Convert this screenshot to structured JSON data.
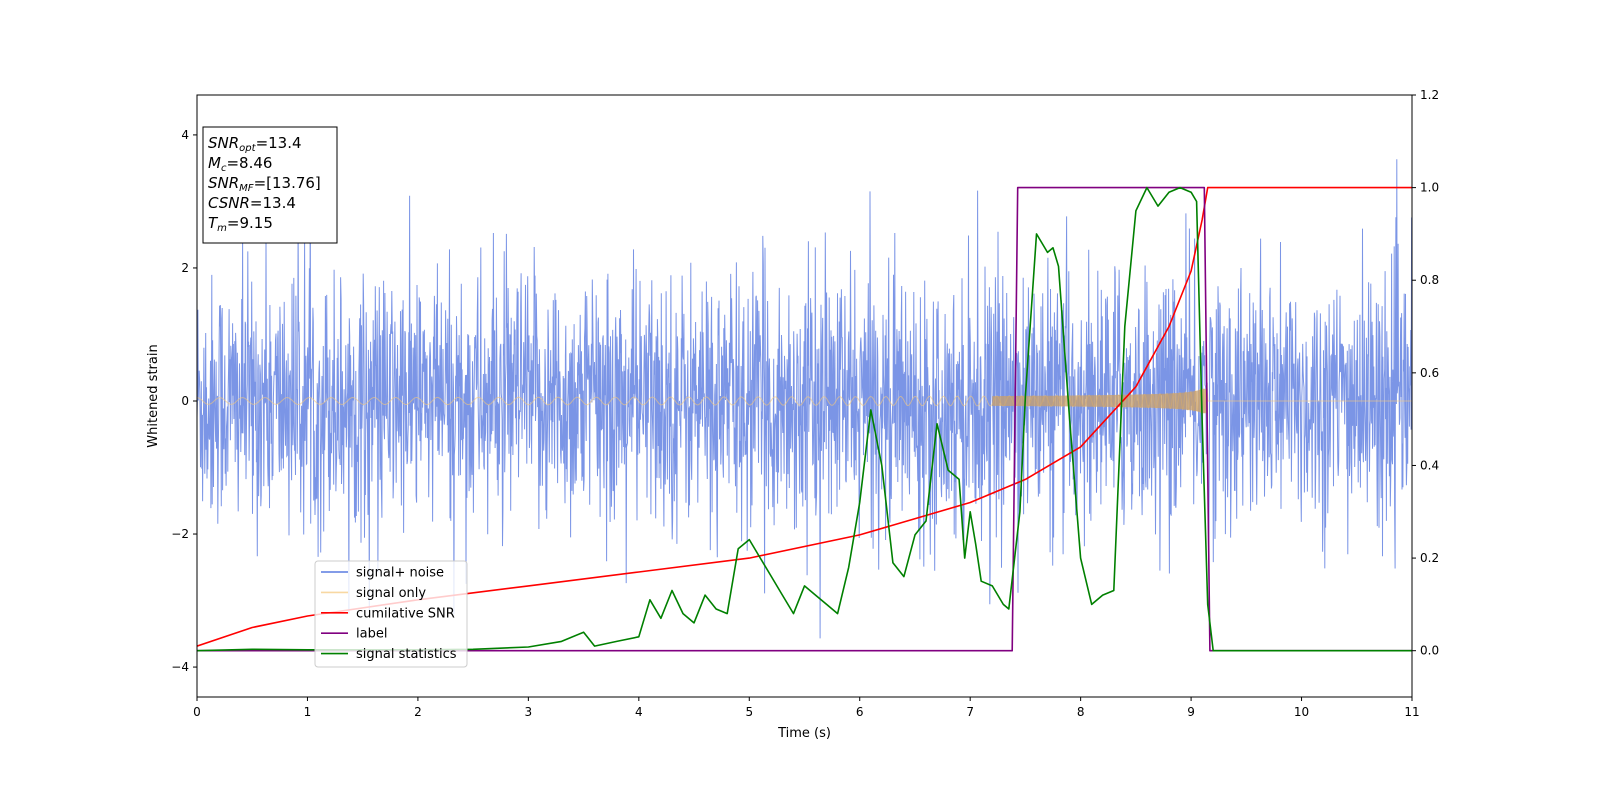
{
  "chart_data": {
    "type": "line",
    "xlabel": "Time (s)",
    "ylabel": "Whitened strain",
    "xlim": [
      0,
      11
    ],
    "ylim": [
      -4.45,
      4.6
    ],
    "y2lim": [
      -0.1,
      1.2
    ],
    "xticks": [
      "0",
      "1",
      "2",
      "3",
      "4",
      "5",
      "6",
      "7",
      "8",
      "9",
      "10",
      "11"
    ],
    "yticks": [
      "-4",
      "-2",
      "0",
      "2",
      "4"
    ],
    "y2ticks": [
      "0.0",
      "0.2",
      "0.4",
      "0.6",
      "0.8",
      "1.0",
      "1.2"
    ],
    "grid": false,
    "legend_position": "lower-left",
    "info_box": {
      "snr_opt": {
        "base": "SNR",
        "sub": "opt",
        "value": "=13.4"
      },
      "mc": {
        "base": "M",
        "sub": "c",
        "value": "=8.46"
      },
      "snr_mf": {
        "base": "SNR",
        "sub": "MF",
        "value": "=[13.76]"
      },
      "csnr": {
        "base": "CSNR",
        "sub": "",
        "value": "=13.4"
      },
      "tm": {
        "base": "T",
        "sub": "m",
        "value": "=9.15"
      }
    },
    "series": [
      {
        "name": "signal+ noise",
        "color": "#5a7be0",
        "axis": "left",
        "description_values": "whitened noise around 0 with amplitude approx +/-2.5, spikes to approx +/-4"
      },
      {
        "name": "signal only",
        "color": "#f5c87a",
        "axis": "left",
        "envelope": {
          "t_end": 9.15,
          "amp_start": 0.05,
          "amp_at_end": 0.85
        }
      },
      {
        "name": "cumilative SNR",
        "color": "#ff0000",
        "axis": "right",
        "x": [
          0,
          0.5,
          1,
          2,
          3,
          4,
          5,
          6,
          7,
          7.5,
          8,
          8.5,
          8.8,
          9,
          9.1,
          9.15,
          11
        ],
        "values": [
          0.01,
          0.05,
          0.075,
          0.11,
          0.14,
          0.17,
          0.2,
          0.25,
          0.32,
          0.37,
          0.44,
          0.57,
          0.7,
          0.82,
          0.93,
          1.0,
          1.0
        ]
      },
      {
        "name": "label",
        "color": "#800080",
        "axis": "right",
        "x": [
          0,
          7.38,
          7.43,
          9.12,
          9.17,
          11
        ],
        "values": [
          0,
          0,
          1,
          1,
          0,
          0
        ]
      },
      {
        "name": "signal statistics",
        "color": "#008000",
        "axis": "right",
        "x": [
          0,
          0.5,
          1,
          1.5,
          2,
          2.5,
          3,
          3.3,
          3.5,
          3.6,
          3.8,
          4.0,
          4.1,
          4.2,
          4.3,
          4.4,
          4.5,
          4.6,
          4.7,
          4.8,
          4.9,
          5.0,
          5.1,
          5.2,
          5.3,
          5.4,
          5.5,
          5.6,
          5.7,
          5.8,
          5.9,
          6.0,
          6.1,
          6.2,
          6.3,
          6.4,
          6.5,
          6.6,
          6.7,
          6.75,
          6.8,
          6.9,
          6.95,
          7.0,
          7.05,
          7.1,
          7.2,
          7.3,
          7.35,
          7.45,
          7.5,
          7.6,
          7.7,
          7.75,
          7.8,
          7.9,
          8.0,
          8.1,
          8.2,
          8.3,
          8.4,
          8.5,
          8.6,
          8.7,
          8.8,
          8.9,
          9.0,
          9.05,
          9.1,
          9.15,
          9.2,
          9.3,
          11
        ],
        "values": [
          0.0,
          0.003,
          0.002,
          0.002,
          0.002,
          0.003,
          0.008,
          0.02,
          0.04,
          0.01,
          0.02,
          0.03,
          0.11,
          0.07,
          0.13,
          0.08,
          0.06,
          0.12,
          0.09,
          0.08,
          0.22,
          0.24,
          0.2,
          0.16,
          0.12,
          0.08,
          0.14,
          0.12,
          0.1,
          0.08,
          0.18,
          0.32,
          0.52,
          0.4,
          0.19,
          0.16,
          0.25,
          0.28,
          0.49,
          0.44,
          0.39,
          0.37,
          0.2,
          0.3,
          0.23,
          0.15,
          0.14,
          0.1,
          0.09,
          0.3,
          0.55,
          0.9,
          0.86,
          0.87,
          0.83,
          0.5,
          0.2,
          0.1,
          0.12,
          0.13,
          0.7,
          0.95,
          1.0,
          0.96,
          0.99,
          1.0,
          0.99,
          0.97,
          0.5,
          0.1,
          0.0,
          0.0,
          0.0
        ]
      }
    ]
  }
}
